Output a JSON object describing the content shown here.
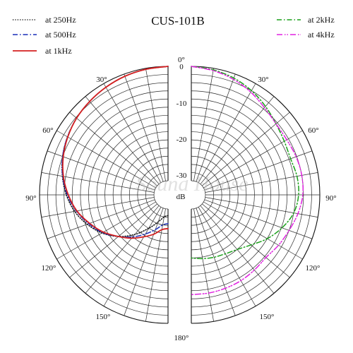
{
  "chart_data": {
    "type": "polar",
    "title": "CUS-101B",
    "radial_unit_label": "dB",
    "radial_ticks": [
      "0",
      "-10",
      "-20",
      "-30"
    ],
    "angle_labels_deg": [
      "0°",
      "30°",
      "60°",
      "90°",
      "120°",
      "150°",
      "180°"
    ],
    "angle_range_deg": [
      0,
      180
    ],
    "radial_range_db": [
      -35,
      0
    ],
    "watermark": "Sound House",
    "legend_left": [
      {
        "name": "at 250Hz",
        "color": "#111111",
        "dash": "dotted"
      },
      {
        "name": "at 500Hz",
        "color": "#1a2fb8",
        "dash": "dashdot"
      },
      {
        "name": "at 1kHz",
        "color": "#d42020",
        "dash": "solid"
      }
    ],
    "legend_right": [
      {
        "name": "at 2kHz",
        "color": "#1aa01a",
        "dash": "dashdot"
      },
      {
        "name": "at 4kHz",
        "color": "#e020e0",
        "dash": "dashdotdot"
      }
    ],
    "series": [
      {
        "name": "at 250Hz",
        "side": "left",
        "color": "#111111",
        "angles": [
          0,
          10,
          20,
          30,
          40,
          50,
          60,
          70,
          80,
          90,
          100,
          110,
          120,
          130,
          140,
          150,
          160,
          170,
          180
        ],
        "values_db": [
          0,
          -0.3,
          -0.7,
          -1.3,
          -2.0,
          -2.8,
          -3.8,
          -5.0,
          -6.5,
          -8.2,
          -10.3,
          -13.0,
          -16.0,
          -19.5,
          -23.5,
          -27.5,
          -30.5,
          -32.5,
          -33.0
        ]
      },
      {
        "name": "at 500Hz",
        "side": "left",
        "color": "#1a2fb8",
        "angles": [
          0,
          10,
          20,
          30,
          40,
          50,
          60,
          70,
          80,
          90,
          100,
          110,
          120,
          130,
          140,
          150,
          160,
          170,
          180
        ],
        "values_db": [
          0,
          -0.3,
          -0.7,
          -1.3,
          -2.0,
          -2.8,
          -3.8,
          -5.0,
          -6.6,
          -8.5,
          -10.8,
          -13.5,
          -16.2,
          -19.5,
          -22.5,
          -25.5,
          -28.0,
          -30.0,
          -30.5
        ]
      },
      {
        "name": "at 1kHz",
        "side": "left",
        "color": "#d42020",
        "angles": [
          0,
          10,
          20,
          30,
          40,
          50,
          60,
          70,
          80,
          90,
          100,
          110,
          120,
          130,
          140,
          150,
          160,
          170,
          180
        ],
        "values_db": [
          0,
          -0.3,
          -0.7,
          -1.3,
          -2.0,
          -2.8,
          -3.9,
          -5.2,
          -6.8,
          -8.8,
          -11.0,
          -13.8,
          -16.5,
          -19.5,
          -22.0,
          -24.5,
          -26.5,
          -28.5,
          -29.0
        ]
      },
      {
        "name": "at 2kHz",
        "side": "right",
        "color": "#1aa01a",
        "angles": [
          0,
          10,
          20,
          30,
          40,
          50,
          60,
          70,
          80,
          90,
          100,
          110,
          120,
          130,
          140,
          150,
          160,
          170,
          180
        ],
        "values_db": [
          0,
          -0.5,
          -1.3,
          -2.5,
          -4.0,
          -5.5,
          -6.5,
          -7.0,
          -6.5,
          -6.5,
          -7.5,
          -9.8,
          -12.5,
          -15.5,
          -17.5,
          -18.5,
          -19.0,
          -19.5,
          -20.0
        ]
      },
      {
        "name": "at 4kHz",
        "side": "right",
        "color": "#e020e0",
        "angles": [
          0,
          10,
          20,
          30,
          40,
          50,
          60,
          70,
          80,
          90,
          100,
          110,
          120,
          130,
          140,
          150,
          160,
          170,
          180
        ],
        "values_db": [
          0,
          -0.7,
          -1.7,
          -3.0,
          -4.5,
          -5.5,
          -5.6,
          -5.2,
          -5.0,
          -5.2,
          -6.2,
          -7.5,
          -8.5,
          -9.5,
          -9.3,
          -9.0,
          -8.9,
          -8.8,
          -8.8
        ]
      }
    ]
  }
}
